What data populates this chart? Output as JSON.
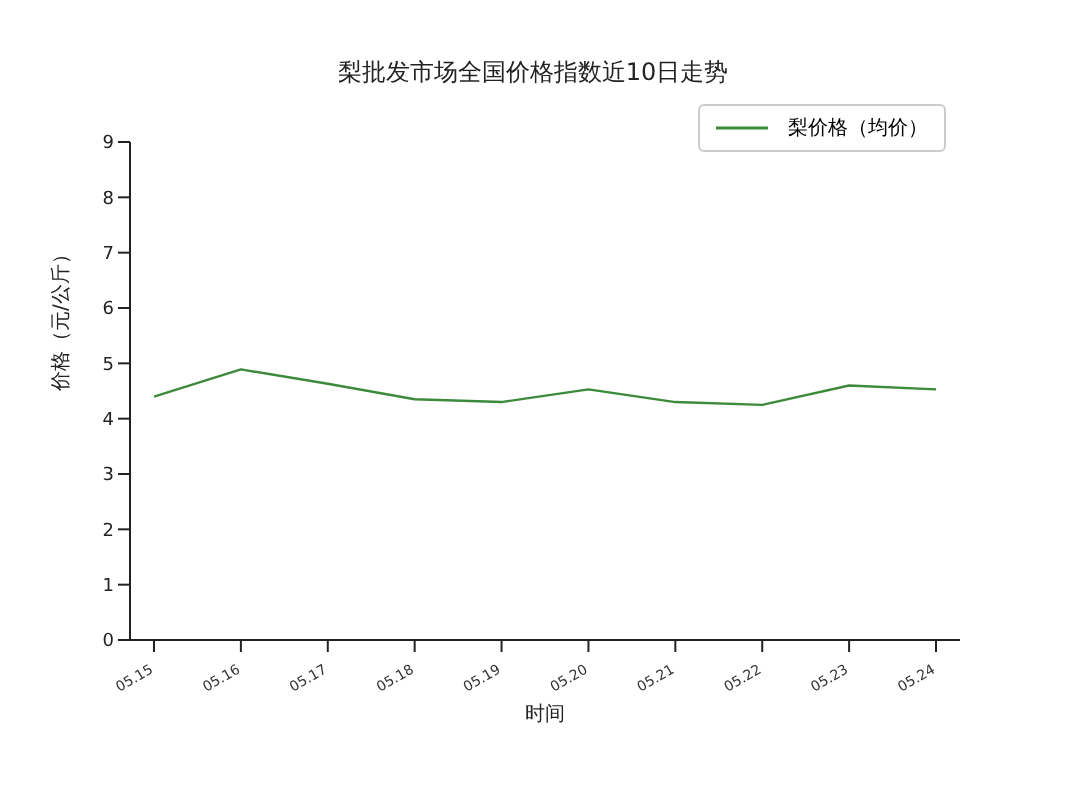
{
  "chart_data": {
    "type": "line",
    "title": "梨批发市场全国价格指数近10日走势",
    "xlabel": "时间",
    "ylabel": "价格（元/公斤）",
    "categories": [
      "05.15",
      "05.16",
      "05.17",
      "05.18",
      "05.19",
      "05.20",
      "05.21",
      "05.22",
      "05.23",
      "05.24"
    ],
    "series": [
      {
        "name": "梨价格（均价）",
        "color": "#3d8a3d",
        "values": [
          4.4,
          4.89,
          4.63,
          4.35,
          4.3,
          4.53,
          4.3,
          4.25,
          4.6,
          4.53
        ]
      }
    ],
    "ylim": [
      0,
      9
    ],
    "yticks": [
      0,
      1,
      2,
      3,
      4,
      5,
      6,
      7,
      8,
      9
    ],
    "grid": false,
    "legend": "top right",
    "marker": "none",
    "line_style": "solid"
  }
}
